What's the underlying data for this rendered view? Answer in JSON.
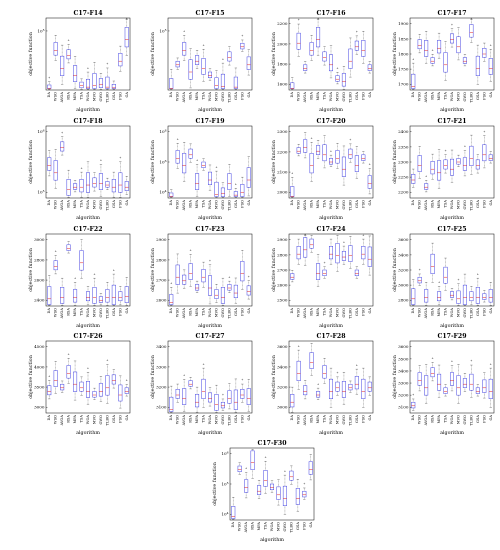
{
  "figure": {
    "ylabel": "objective function",
    "xlabel": "algorithm",
    "algorithms": [
      "DA",
      "WSO",
      "AVOA",
      "RSA",
      "MPA",
      "TSA",
      "WOA",
      "MVO",
      "GWO",
      "TLBO",
      "GSA",
      "PSO",
      "GA"
    ],
    "colors": {
      "box": "#3030e0",
      "median": "#e02020",
      "outlier": "#3030e0",
      "whisker": "#202020"
    }
  },
  "chart_data": [
    {
      "title": "C17-F14",
      "type": "box",
      "log": true,
      "yticks": [
        "10^5"
      ],
      "median_order": [
        0.02,
        0.55,
        0.3,
        0.48,
        0.2,
        0.06,
        0.04,
        0.06,
        0.08,
        0.04,
        0.03,
        0.4,
        0.7
      ]
    },
    {
      "title": "C17-F15",
      "type": "box",
      "log": true,
      "yticks": [
        "10^5"
      ],
      "median_order": [
        0.02,
        0.35,
        0.55,
        0.25,
        0.4,
        0.3,
        0.2,
        0.06,
        0.05,
        0.45,
        0.04,
        0.6,
        0.35
      ]
    },
    {
      "title": "C17-F16",
      "type": "box",
      "log": false,
      "ylim": [
        1600,
        2200
      ],
      "yticks": [
        "1600",
        "1800",
        "2000",
        "2200"
      ],
      "median_order": [
        0.02,
        0.65,
        0.3,
        0.55,
        0.7,
        0.45,
        0.35,
        0.15,
        0.12,
        0.4,
        0.6,
        0.55,
        0.3
      ]
    },
    {
      "title": "C17-F17",
      "type": "box",
      "log": false,
      "ylim": [
        1700,
        1900
      ],
      "yticks": [
        "1700",
        "1750",
        "1800",
        "1850",
        "1900"
      ],
      "median_order": [
        0.05,
        0.62,
        0.55,
        0.4,
        0.58,
        0.35,
        0.7,
        0.6,
        0.4,
        0.8,
        0.3,
        0.5,
        0.3
      ]
    },
    {
      "title": "C17-F18",
      "type": "box",
      "log": true,
      "yticks": [
        "10^5",
        "10^6"
      ],
      "median_order": [
        0.45,
        0.35,
        0.7,
        0.12,
        0.15,
        0.15,
        0.18,
        0.2,
        0.2,
        0.18,
        0.15,
        0.18,
        0.15
      ]
    },
    {
      "title": "C17-F19",
      "type": "box",
      "log": true,
      "yticks": [
        "10^4",
        "10^6",
        "10^8"
      ],
      "median_order": [
        0.02,
        0.55,
        0.45,
        0.6,
        0.2,
        0.45,
        0.25,
        0.05,
        0.06,
        0.2,
        0.04,
        0.08,
        0.25
      ]
    },
    {
      "title": "C17-F20",
      "type": "box",
      "log": false,
      "ylim": [
        2000,
        2300
      ],
      "yticks": [
        "2000",
        "2100",
        "2200",
        "2300"
      ],
      "median_order": [
        0.02,
        0.65,
        0.7,
        0.45,
        0.65,
        0.6,
        0.5,
        0.55,
        0.4,
        0.6,
        0.45,
        0.55,
        0.2
      ]
    },
    {
      "title": "C17-F21",
      "type": "box",
      "log": false,
      "ylim": [
        2200,
        2400
      ],
      "yticks": [
        "2200",
        "2250",
        "2300",
        "2350",
        "2400"
      ],
      "median_order": [
        0.25,
        0.45,
        0.15,
        0.4,
        0.35,
        0.45,
        0.4,
        0.5,
        0.45,
        0.55,
        0.45,
        0.6,
        0.55
      ]
    },
    {
      "title": "C17-F22",
      "type": "box",
      "log": false,
      "ylim": [
        2200,
        3000
      ],
      "yticks": [
        "2400",
        "2600",
        "2800",
        "3000"
      ],
      "median_order": [
        0.1,
        0.55,
        0.12,
        0.8,
        0.12,
        0.6,
        0.12,
        0.12,
        0.08,
        0.12,
        0.12,
        0.12,
        0.13
      ]
    },
    {
      "title": "C17-F23",
      "type": "box",
      "log": false,
      "ylim": [
        2550,
        2950
      ],
      "yticks": [
        "2600",
        "2700",
        "2800",
        "2900"
      ],
      "median_order": [
        0.05,
        0.4,
        0.35,
        0.45,
        0.25,
        0.4,
        0.25,
        0.15,
        0.12,
        0.25,
        0.18,
        0.45,
        0.2
      ]
    },
    {
      "title": "C17-F24",
      "type": "box",
      "log": false,
      "ylim": [
        2400,
        3000
      ],
      "yticks": [
        "2500",
        "2600",
        "2700",
        "2800",
        "2900"
      ],
      "median_order": [
        0.4,
        0.72,
        0.78,
        0.85,
        0.45,
        0.45,
        0.72,
        0.7,
        0.68,
        0.7,
        0.45,
        0.72,
        0.65
      ]
    },
    {
      "title": "C17-F25",
      "type": "box",
      "log": false,
      "ylim": [
        2850,
        3650
      ],
      "yticks": [
        "2800",
        "3000",
        "3200",
        "3400",
        "3600"
      ],
      "median_order": [
        0.1,
        0.35,
        0.12,
        0.55,
        0.12,
        0.4,
        0.15,
        0.1,
        0.12,
        0.12,
        0.12,
        0.12,
        0.12
      ]
    },
    {
      "title": "C17-F26",
      "type": "box",
      "log": false,
      "ylim": [
        2500,
        4800
      ],
      "yticks": [
        "3000",
        "3500",
        "4000",
        "4500"
      ],
      "median_order": [
        0.3,
        0.45,
        0.35,
        0.55,
        0.4,
        0.35,
        0.3,
        0.25,
        0.3,
        0.35,
        0.45,
        0.25,
        0.3
      ]
    },
    {
      "title": "C17-F27",
      "type": "box",
      "log": false,
      "ylim": [
        3100,
        3450
      ],
      "yticks": [
        "3100",
        "3200",
        "3300",
        "3400"
      ],
      "median_order": [
        0.05,
        0.25,
        0.2,
        0.4,
        0.15,
        0.3,
        0.2,
        0.12,
        0.1,
        0.2,
        0.15,
        0.25,
        0.2
      ]
    },
    {
      "title": "C17-F28",
      "type": "box",
      "log": false,
      "ylim": [
        2900,
        3750
      ],
      "yticks": [
        "3000",
        "3200",
        "3400",
        "3600"
      ],
      "median_order": [
        0.15,
        0.55,
        0.3,
        0.7,
        0.25,
        0.55,
        0.3,
        0.35,
        0.3,
        0.35,
        0.4,
        0.3,
        0.35
      ]
    },
    {
      "title": "C17-F29",
      "type": "box",
      "log": false,
      "ylim": [
        3050,
        3650
      ],
      "yticks": [
        "3100",
        "3200",
        "3300",
        "3400",
        "3500",
        "3600"
      ],
      "median_order": [
        0.1,
        0.45,
        0.35,
        0.55,
        0.4,
        0.3,
        0.45,
        0.35,
        0.4,
        0.4,
        0.3,
        0.35,
        0.3
      ]
    },
    {
      "title": "C17-F30",
      "type": "box",
      "log": true,
      "yticks": [
        "10^4",
        "10^5",
        "10^6"
      ],
      "median_order": [
        0.05,
        0.7,
        0.45,
        0.8,
        0.4,
        0.55,
        0.45,
        0.35,
        0.3,
        0.6,
        0.3,
        0.35,
        0.7
      ]
    }
  ]
}
